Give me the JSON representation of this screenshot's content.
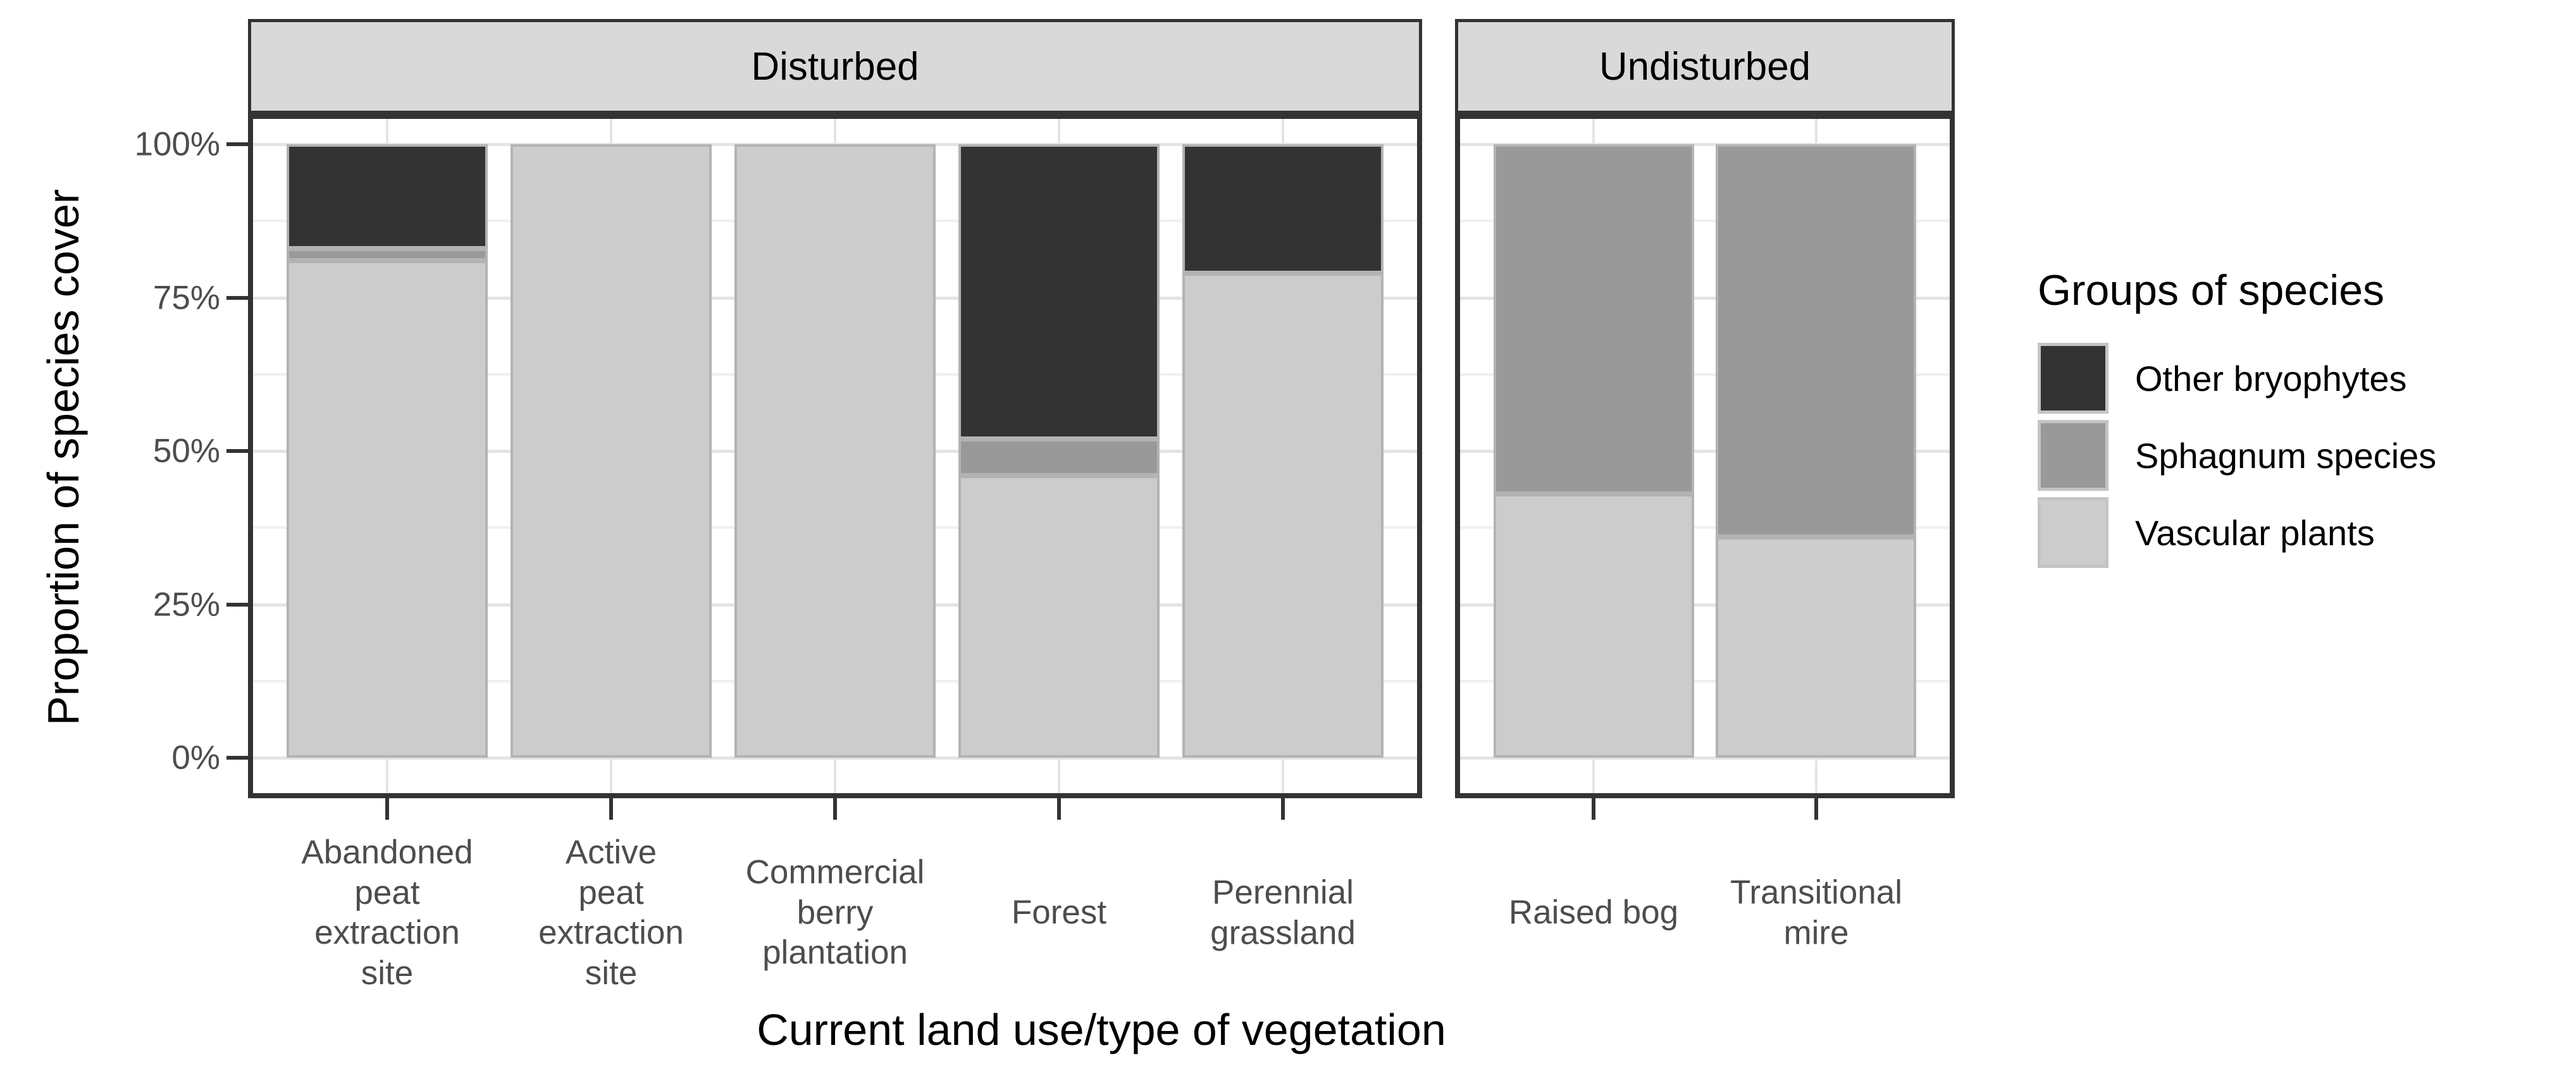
{
  "chart_data": {
    "type": "bar",
    "stacked": true,
    "percent_scale": true,
    "xlabel": "Current land use/type of vegetation",
    "ylabel": "Proportion of species cover",
    "y_axis": {
      "tick_labels": [
        "0%",
        "25%",
        "50%",
        "75%",
        "100%"
      ],
      "tick_values": [
        0,
        25,
        50,
        75,
        100
      ],
      "minor_values": [
        12.5,
        37.5,
        62.5,
        87.5
      ],
      "range": [
        0,
        100
      ],
      "grid": true
    },
    "legend": {
      "title": "Groups of species",
      "position": "right",
      "entries": [
        {
          "label": "Other bryophytes",
          "color": "#333333"
        },
        {
          "label": "Sphagnum species",
          "color": "#999999"
        },
        {
          "label": "Vascular plants",
          "color": "#cccccc"
        }
      ]
    },
    "stack_order_bottom_to_top": [
      "Vascular plants",
      "Sphagnum species",
      "Other bryophytes"
    ],
    "facets": [
      {
        "label": "Disturbed",
        "categories": [
          "Abandoned\npeat\nextraction\nsite",
          "Active\npeat\nextraction\nsite",
          "Commercial\nberry\nplantation",
          "Forest",
          "Perennial\ngrassland"
        ],
        "series": [
          {
            "name": "Vascular plants",
            "values": [
              81,
              100,
              100,
              46,
              79
            ]
          },
          {
            "name": "Sphagnum species",
            "values": [
              2,
              0,
              0,
              6,
              0
            ]
          },
          {
            "name": "Other bryophytes",
            "values": [
              17,
              0,
              0,
              48,
              21
            ]
          }
        ]
      },
      {
        "label": "Undisturbed",
        "categories": [
          "Raised bog",
          "Transitional\nmire"
        ],
        "series": [
          {
            "name": "Vascular plants",
            "values": [
              43,
              36
            ]
          },
          {
            "name": "Sphagnum species",
            "values": [
              57,
              64
            ]
          },
          {
            "name": "Other bryophytes",
            "values": [
              0,
              0
            ]
          }
        ]
      }
    ]
  },
  "style_colors": {
    "panel_border": "#333333",
    "strip_background": "#d9d9d9",
    "grid_major": "#e4e4e4",
    "grid_minor": "#f0f0f0",
    "segment_border": "#b3b3b3",
    "axis_text": "#4d4d4d",
    "tick_mark": "#333333"
  }
}
